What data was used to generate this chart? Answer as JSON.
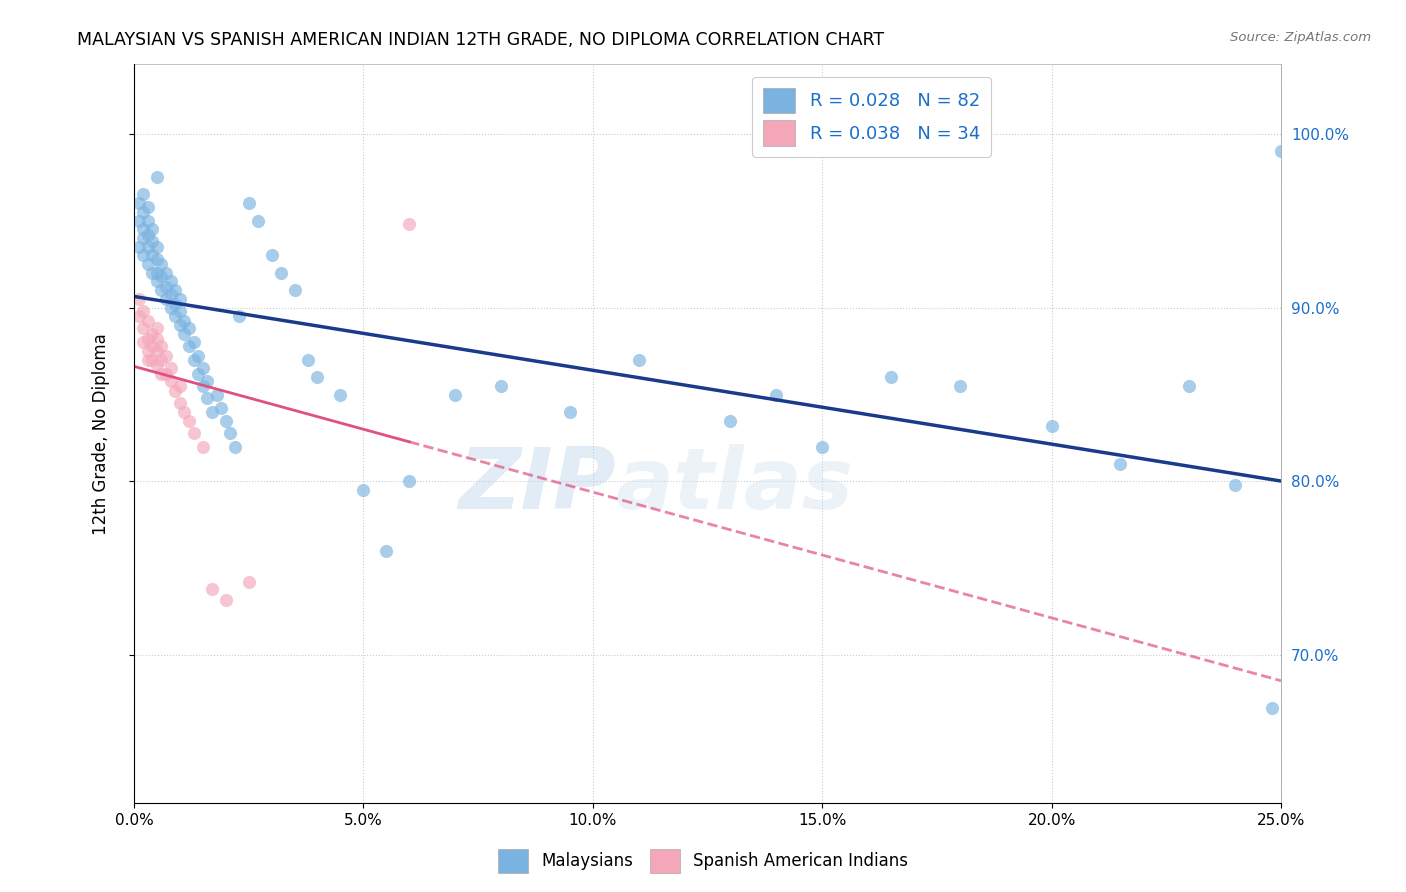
{
  "title": "MALAYSIAN VS SPANISH AMERICAN INDIAN 12TH GRADE, NO DIPLOMA CORRELATION CHART",
  "source": "Source: ZipAtlas.com",
  "ylabel": "12th Grade, No Diploma",
  "ytick_labels": [
    "70.0%",
    "80.0%",
    "90.0%",
    "100.0%"
  ],
  "ytick_values": [
    0.7,
    0.8,
    0.9,
    1.0
  ],
  "xlim": [
    0.0,
    0.25
  ],
  "ylim": [
    0.615,
    1.04
  ],
  "legend_blue_r": "R = 0.028",
  "legend_blue_n": "N = 82",
  "legend_pink_r": "R = 0.038",
  "legend_pink_n": "N = 34",
  "legend_blue_label": "Malaysians",
  "legend_pink_label": "Spanish American Indians",
  "blue_color": "#7ab3e0",
  "pink_color": "#f4a7b9",
  "blue_line_color": "#1a3a8c",
  "pink_line_color": "#e05080",
  "watermark_zip": "ZIP",
  "watermark_atlas": "atlas",
  "blue_scatter_x": [
    0.001,
    0.001,
    0.001,
    0.002,
    0.002,
    0.002,
    0.002,
    0.002,
    0.003,
    0.003,
    0.003,
    0.003,
    0.003,
    0.004,
    0.004,
    0.004,
    0.004,
    0.005,
    0.005,
    0.005,
    0.005,
    0.005,
    0.006,
    0.006,
    0.006,
    0.007,
    0.007,
    0.007,
    0.008,
    0.008,
    0.008,
    0.009,
    0.009,
    0.009,
    0.01,
    0.01,
    0.01,
    0.011,
    0.011,
    0.012,
    0.012,
    0.013,
    0.013,
    0.014,
    0.014,
    0.015,
    0.015,
    0.016,
    0.016,
    0.017,
    0.018,
    0.019,
    0.02,
    0.021,
    0.022,
    0.023,
    0.025,
    0.027,
    0.03,
    0.032,
    0.035,
    0.038,
    0.04,
    0.045,
    0.05,
    0.055,
    0.06,
    0.07,
    0.08,
    0.095,
    0.11,
    0.13,
    0.14,
    0.15,
    0.165,
    0.18,
    0.2,
    0.215,
    0.23,
    0.24,
    0.248,
    0.25
  ],
  "blue_scatter_y": [
    0.935,
    0.95,
    0.96,
    0.93,
    0.94,
    0.945,
    0.955,
    0.965,
    0.925,
    0.935,
    0.942,
    0.95,
    0.958,
    0.92,
    0.93,
    0.938,
    0.945,
    0.915,
    0.92,
    0.928,
    0.935,
    0.975,
    0.91,
    0.918,
    0.925,
    0.905,
    0.912,
    0.92,
    0.9,
    0.908,
    0.915,
    0.895,
    0.902,
    0.91,
    0.89,
    0.898,
    0.905,
    0.885,
    0.892,
    0.878,
    0.888,
    0.87,
    0.88,
    0.862,
    0.872,
    0.855,
    0.865,
    0.848,
    0.858,
    0.84,
    0.85,
    0.842,
    0.835,
    0.828,
    0.82,
    0.895,
    0.96,
    0.95,
    0.93,
    0.92,
    0.91,
    0.87,
    0.86,
    0.85,
    0.795,
    0.76,
    0.8,
    0.85,
    0.855,
    0.84,
    0.87,
    0.835,
    0.85,
    0.82,
    0.86,
    0.855,
    0.832,
    0.81,
    0.855,
    0.798,
    0.67,
    0.99
  ],
  "pink_scatter_x": [
    0.001,
    0.001,
    0.002,
    0.002,
    0.002,
    0.003,
    0.003,
    0.003,
    0.003,
    0.004,
    0.004,
    0.004,
    0.005,
    0.005,
    0.005,
    0.005,
    0.006,
    0.006,
    0.006,
    0.007,
    0.007,
    0.008,
    0.008,
    0.009,
    0.01,
    0.01,
    0.011,
    0.012,
    0.013,
    0.015,
    0.017,
    0.02,
    0.025,
    0.06
  ],
  "pink_scatter_y": [
    0.895,
    0.905,
    0.888,
    0.898,
    0.88,
    0.892,
    0.882,
    0.875,
    0.87,
    0.885,
    0.878,
    0.87,
    0.888,
    0.882,
    0.875,
    0.867,
    0.878,
    0.87,
    0.862,
    0.872,
    0.862,
    0.865,
    0.858,
    0.852,
    0.845,
    0.855,
    0.84,
    0.835,
    0.828,
    0.82,
    0.738,
    0.732,
    0.742,
    0.948
  ]
}
